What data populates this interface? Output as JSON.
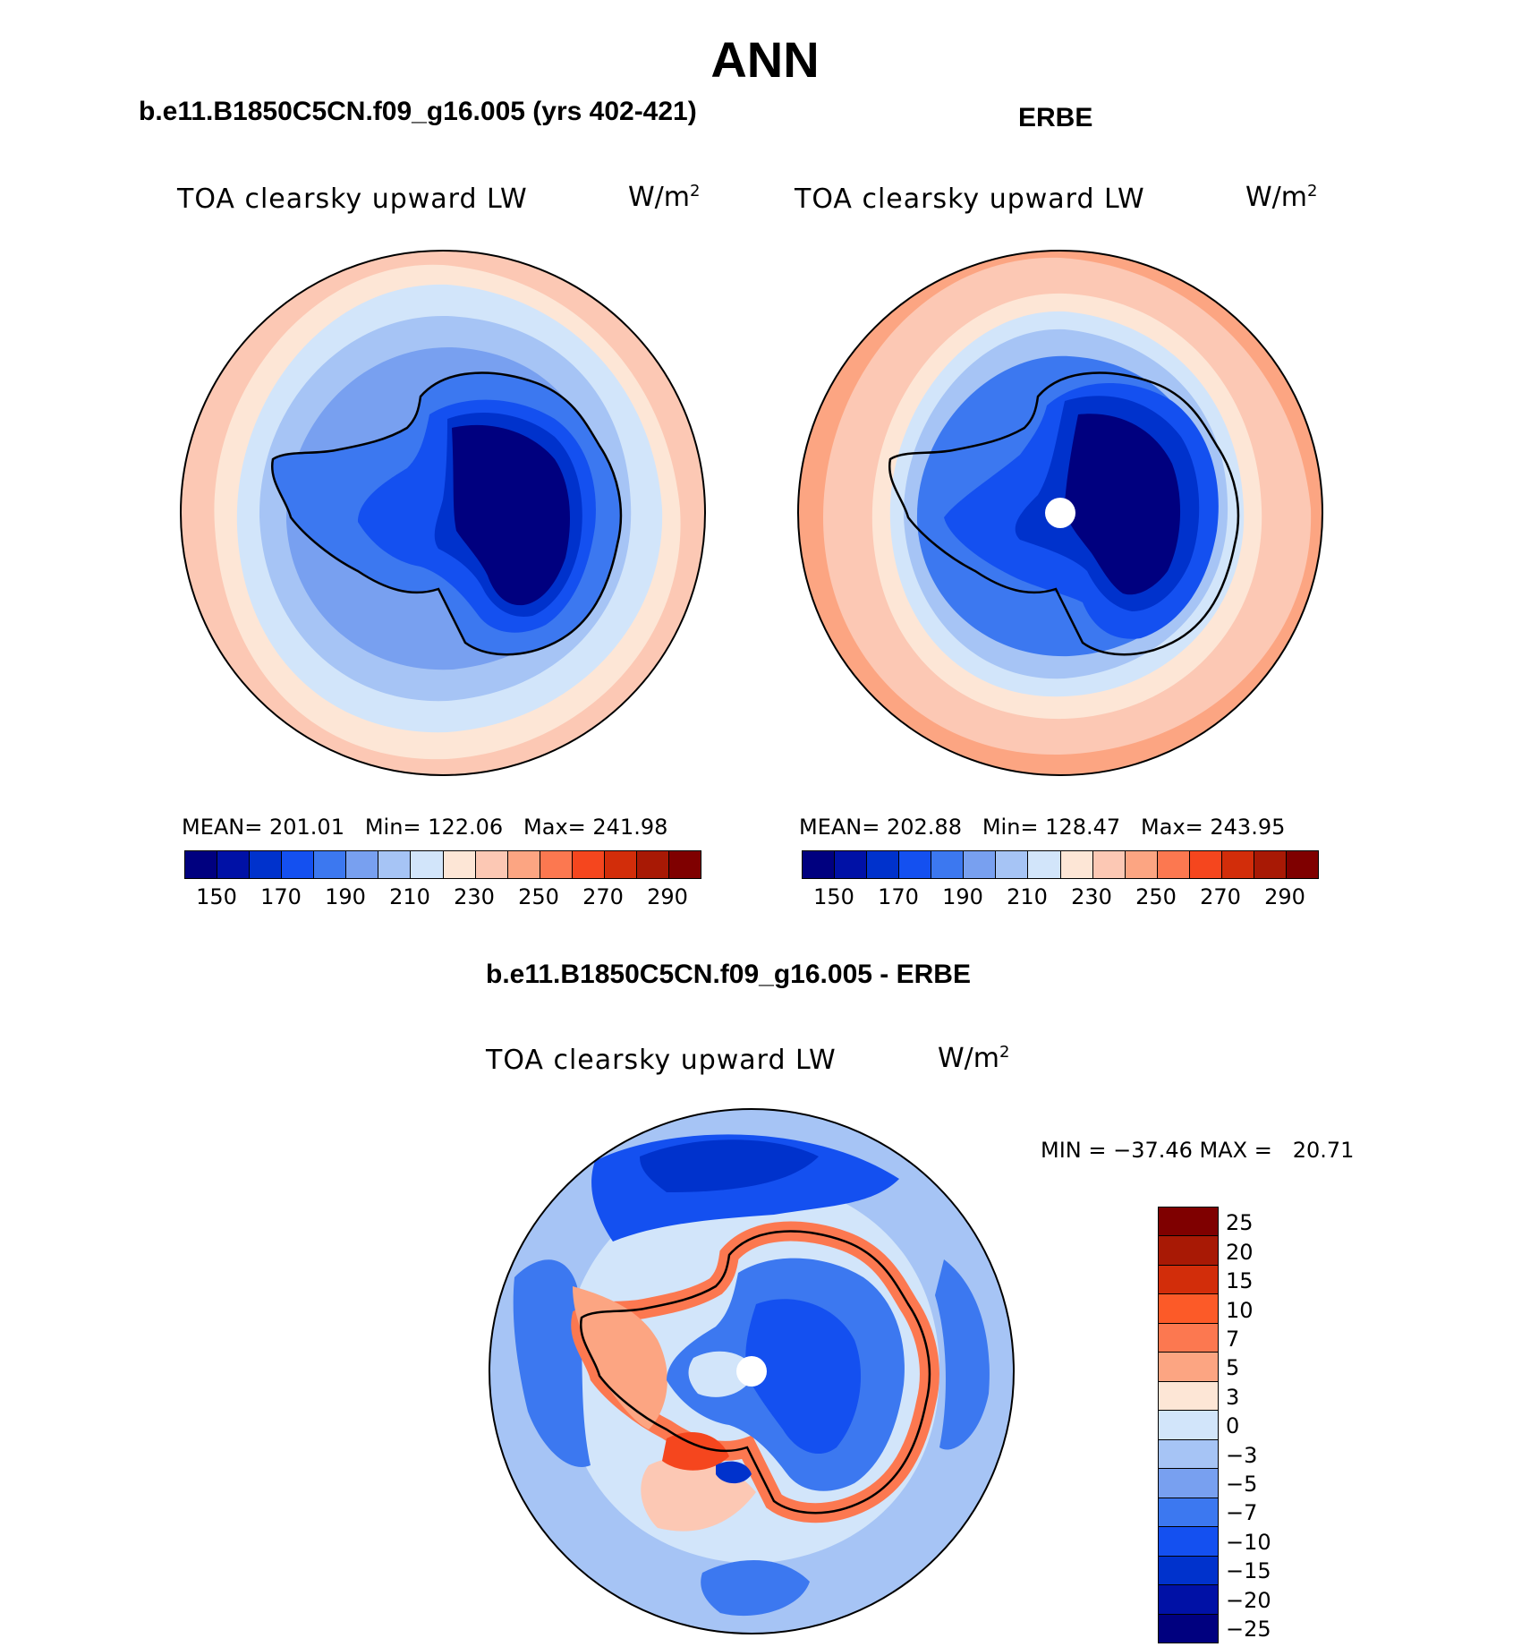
{
  "title": "ANN",
  "panels": [
    {
      "case_title": "b.e11.B1850C5CN.f09_g16.005 (yrs 402-421)",
      "label": "TOA clearsky upward LW",
      "units_base": "W/m",
      "units_sup": "2",
      "stats": "MEAN= 201.01   Min= 122.06   Max= 241.98",
      "has_pole_hole": false
    },
    {
      "case_title": "ERBE",
      "label": "TOA clearsky upward LW",
      "units_base": "W/m",
      "units_sup": "2",
      "stats": "MEAN= 202.88   Min= 128.47   Max= 243.95",
      "has_pole_hole": true
    }
  ],
  "colorbar_abs": {
    "colors": [
      "#00007f",
      "#0011a6",
      "#0032cc",
      "#1450f0",
      "#3c78f0",
      "#78a0f0",
      "#a6c4f5",
      "#d2e5fa",
      "#fde6d6",
      "#fcc8b4",
      "#fca582",
      "#fc7850",
      "#f5461e",
      "#d22d0a",
      "#a81905",
      "#7f0000"
    ],
    "labels": [
      "150",
      "170",
      "190",
      "210",
      "230",
      "250",
      "270",
      "290"
    ]
  },
  "diff_panel": {
    "case_title": "b.e11.B1850C5CN.f09_g16.005 - ERBE",
    "label": "TOA clearsky upward LW",
    "units_base": "W/m",
    "units_sup": "2",
    "stats": "MIN = −37.46 MAX =   20.71",
    "has_pole_hole": true
  },
  "colorbar_diff": {
    "colors": [
      "#7f0000",
      "#a81905",
      "#d22d0a",
      "#fc5a28",
      "#fc7850",
      "#fca582",
      "#fde6d6",
      "#d2e5fa",
      "#a6c4f5",
      "#78a0f0",
      "#3c78f0",
      "#1450f0",
      "#0032cc",
      "#0011a6",
      "#00007f"
    ],
    "labels": [
      "25",
      "20",
      "15",
      "10",
      "7",
      "5",
      "3",
      "0",
      "−3",
      "−5",
      "−7",
      "−10",
      "−15",
      "−20",
      "−25"
    ]
  },
  "chart_data": {
    "type": "heatmap",
    "projection": "south-polar-stereographic",
    "variable": "TOA clearsky upward LW",
    "units": "W/m2",
    "season": "ANN",
    "panels": [
      {
        "name": "b.e11.B1850C5CN.f09_g16.005 (yrs 402-421)",
        "mean": 201.01,
        "min": 122.06,
        "max": 241.98
      },
      {
        "name": "ERBE",
        "mean": 202.88,
        "min": 128.47,
        "max": 243.95
      },
      {
        "name": "b.e11.B1850C5CN.f09_g16.005 - ERBE",
        "min": -37.46,
        "max": 20.71
      }
    ],
    "abs_levels": [
      150,
      160,
      170,
      180,
      190,
      200,
      210,
      220,
      230,
      240,
      250,
      260,
      270,
      280,
      290
    ],
    "diff_levels": [
      -25,
      -20,
      -15,
      -10,
      -7,
      -5,
      -3,
      0,
      3,
      5,
      7,
      10,
      15,
      20,
      25
    ]
  }
}
